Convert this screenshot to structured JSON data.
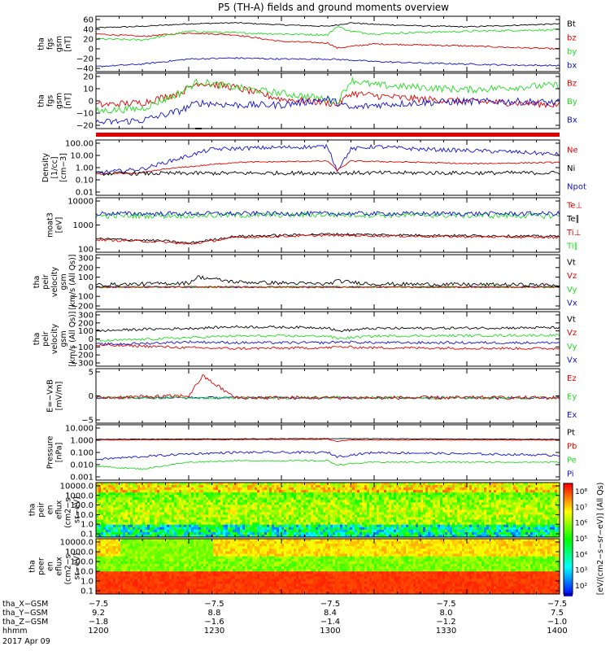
{
  "title": "P5 (TH-A) fields and ground moments overview",
  "colors": {
    "black": "#000000",
    "red": "#e00000",
    "green": "#22dd22",
    "blue": "#1010d0"
  },
  "chart_data": [
    {
      "type": "line",
      "ylabel": [
        "tha",
        "fgs",
        "gsm",
        "[nT]"
      ],
      "yticks": [
        "60",
        "40",
        "20",
        "0",
        "−20",
        "−40"
      ],
      "ylim": [
        -45,
        65
      ],
      "legend": [
        {
          "name": "Bt",
          "color": "black"
        },
        {
          "name": "bz",
          "color": "red"
        },
        {
          "name": "by",
          "color": "green"
        },
        {
          "name": "bx",
          "color": "blue"
        }
      ],
      "series": [
        {
          "name": "Bt",
          "color": "black",
          "x": [
            0,
            0.1,
            0.2,
            0.3,
            0.4,
            0.5,
            0.55,
            0.6,
            0.7,
            0.8,
            0.9,
            1.0
          ],
          "y": [
            42,
            45,
            50,
            52,
            48,
            45,
            52,
            49,
            46,
            44,
            47,
            50
          ],
          "noise": 1.2
        },
        {
          "name": "bz",
          "color": "red",
          "x": [
            0,
            0.1,
            0.2,
            0.3,
            0.4,
            0.5,
            0.52,
            0.55,
            0.6,
            0.7,
            0.8,
            0.9,
            1.0
          ],
          "y": [
            30,
            25,
            32,
            28,
            15,
            12,
            2,
            5,
            10,
            8,
            6,
            3,
            0
          ],
          "noise": 1.5
        },
        {
          "name": "by",
          "color": "green",
          "x": [
            0,
            0.1,
            0.2,
            0.3,
            0.4,
            0.5,
            0.52,
            0.55,
            0.6,
            0.7,
            0.8,
            0.9,
            1.0
          ],
          "y": [
            20,
            18,
            35,
            32,
            30,
            28,
            45,
            35,
            30,
            33,
            35,
            37,
            38
          ],
          "noise": 2
        },
        {
          "name": "bx",
          "color": "blue",
          "x": [
            0,
            0.1,
            0.2,
            0.3,
            0.4,
            0.5,
            0.55,
            0.6,
            0.7,
            0.8,
            0.9,
            1.0
          ],
          "y": [
            -35,
            -30,
            -20,
            -18,
            -20,
            -20,
            -22,
            -25,
            -28,
            -30,
            -32,
            -33
          ],
          "noise": 1.5
        }
      ]
    },
    {
      "type": "line",
      "ylabel": [
        "tha",
        "fgs",
        "gsm",
        "[nT]"
      ],
      "yticks": [
        "20",
        "10",
        "0",
        "−10",
        "−20"
      ],
      "ylim": [
        -25,
        22
      ],
      "legend": [
        {
          "name": "Bz",
          "color": "red"
        },
        {
          "name": "By",
          "color": "green"
        },
        {
          "name": "Bx",
          "color": "blue"
        }
      ],
      "series": [
        {
          "name": "Bz",
          "color": "red",
          "x": [
            0,
            0.1,
            0.18,
            0.22,
            0.3,
            0.4,
            0.5,
            0.52,
            0.55,
            0.6,
            0.7,
            0.8,
            0.9,
            1.0
          ],
          "y": [
            -5,
            -3,
            5,
            14,
            10,
            0,
            -3,
            -5,
            5,
            3,
            0,
            -2,
            -3,
            -5
          ],
          "noise": 3
        },
        {
          "name": "By",
          "color": "green",
          "x": [
            0,
            0.1,
            0.18,
            0.22,
            0.3,
            0.4,
            0.5,
            0.52,
            0.55,
            0.6,
            0.7,
            0.8,
            0.9,
            1.0
          ],
          "y": [
            -10,
            -8,
            5,
            15,
            10,
            5,
            0,
            -3,
            16,
            12,
            10,
            8,
            10,
            12
          ],
          "noise": 3
        },
        {
          "name": "Bx",
          "color": "blue",
          "x": [
            0,
            0.1,
            0.18,
            0.22,
            0.3,
            0.4,
            0.5,
            0.52,
            0.55,
            0.6,
            0.7,
            0.8,
            0.9,
            1.0
          ],
          "y": [
            -20,
            -18,
            -10,
            -3,
            -5,
            -5,
            0,
            -3,
            -8,
            -5,
            -3,
            -2,
            -2,
            -3
          ],
          "noise": 3
        }
      ]
    },
    {
      "type": "line",
      "log": true,
      "ylabel": [
        "Density",
        "[1/cc]",
        "[cm−3]"
      ],
      "yticks": [
        "100.00",
        "10.00",
        "1.00",
        "0.10",
        "0.01"
      ],
      "ylim": [
        -2,
        2.2
      ],
      "legend": [
        {
          "name": "Ne",
          "color": "red"
        },
        {
          "name": "Ni",
          "color": "black"
        },
        {
          "name": "Npot",
          "color": "blue"
        }
      ],
      "series": [
        {
          "name": "Npot",
          "color": "blue",
          "x": [
            0,
            0.1,
            0.15,
            0.25,
            0.35,
            0.5,
            0.52,
            0.55,
            0.6,
            0.7,
            0.8,
            0.9,
            1.0
          ],
          "y": [
            -0.3,
            0,
            0.5,
            1.5,
            1.6,
            1.7,
            -0.1,
            1.5,
            1.7,
            1.5,
            1.4,
            1.3,
            1.1
          ],
          "noise": 0.15
        },
        {
          "name": "Ne",
          "color": "red",
          "x": [
            0,
            0.1,
            0.15,
            0.3,
            0.5,
            0.52,
            0.55,
            0.7,
            0.8,
            0.9,
            1.0
          ],
          "y": [
            -0.4,
            -0.3,
            0,
            0.5,
            0.6,
            -0.1,
            0.6,
            0.5,
            0.4,
            0.45,
            0.5
          ],
          "noise": 0.05
        },
        {
          "name": "Ni",
          "color": "black",
          "x": [
            0,
            0.5,
            1.0
          ],
          "y": [
            -0.35,
            -0.3,
            -0.3
          ],
          "noise": 0.15
        }
      ]
    },
    {
      "type": "line",
      "log": true,
      "ylabel": [
        "moat3",
        "[eV]"
      ],
      "yticks": [
        "10000",
        "1000",
        "100"
      ],
      "ylim": [
        1.6,
        4.0
      ],
      "legend": [
        {
          "name": "Te⊥",
          "color": "red"
        },
        {
          "name": "Te∥",
          "color": "black"
        },
        {
          "name": "Ti⊥",
          "color": "red"
        },
        {
          "name": "Ti∥",
          "color": "green"
        }
      ],
      "series": [
        {
          "name": "Ti∥",
          "color": "green",
          "x": [
            0,
            0.5,
            1.0
          ],
          "y": [
            3.2,
            3.25,
            3.2
          ],
          "noise": 0.12
        },
        {
          "name": "Te∥",
          "color": "blue",
          "x": [
            0,
            0.5,
            1.0
          ],
          "y": [
            3.3,
            3.3,
            3.3
          ],
          "noise": 0.1
        },
        {
          "name": "Te∥b",
          "color": "black",
          "x": [
            0,
            0.15,
            0.2,
            0.3,
            0.5,
            0.7,
            1.0
          ],
          "y": [
            2.2,
            2.1,
            2.0,
            2.3,
            2.4,
            2.35,
            2.3
          ],
          "noise": 0.05
        },
        {
          "name": "Te⊥",
          "color": "red",
          "x": [
            0,
            0.15,
            0.2,
            0.3,
            0.5,
            0.7,
            1.0
          ],
          "y": [
            2.15,
            2.05,
            1.95,
            2.25,
            2.35,
            2.3,
            2.25
          ],
          "noise": 0.05
        }
      ]
    },
    {
      "type": "line",
      "ylabel": [
        "tha",
        "peir",
        "velocity",
        "gsm",
        "[km/s (All Qs)]"
      ],
      "yticks": [
        "300",
        "200",
        "100",
        "0",
        "−100",
        "−200"
      ],
      "ylim": [
        -220,
        320
      ],
      "legend": [
        {
          "name": "Vt",
          "color": "black"
        },
        {
          "name": "Vz",
          "color": "red"
        },
        {
          "name": "Vy",
          "color": "green"
        },
        {
          "name": "Vx",
          "color": "blue"
        }
      ],
      "series": [
        {
          "name": "Vx",
          "color": "blue",
          "x": [
            0,
            1.0
          ],
          "y": [
            0,
            0
          ],
          "noise": 8
        },
        {
          "name": "Vy",
          "color": "green",
          "x": [
            0,
            1.0
          ],
          "y": [
            0,
            0
          ],
          "noise": 10
        },
        {
          "name": "Vz",
          "color": "red",
          "x": [
            0,
            1.0
          ],
          "y": [
            0,
            0
          ],
          "noise": 8
        },
        {
          "name": "Vt",
          "color": "black",
          "x": [
            0,
            0.2,
            0.22,
            0.3,
            0.5,
            0.52,
            0.6,
            1.0
          ],
          "y": [
            20,
            40,
            100,
            50,
            30,
            60,
            30,
            20
          ],
          "noise": 18
        }
      ]
    },
    {
      "type": "line",
      "ylabel": [
        "tha",
        "peir",
        "velocity",
        "gsm",
        "[km/s (All Qs)]"
      ],
      "yticks": [
        "300",
        "200",
        "100",
        "0",
        "−100",
        "−200",
        "−300"
      ],
      "ylim": [
        -320,
        330
      ],
      "legend": [
        {
          "name": "Vt",
          "color": "black"
        },
        {
          "name": "Vz",
          "color": "red"
        },
        {
          "name": "Vy",
          "color": "green"
        },
        {
          "name": "Vx",
          "color": "blue"
        }
      ],
      "series": [
        {
          "name": "Vt",
          "color": "black",
          "x": [
            0,
            0.1,
            0.2,
            0.3,
            0.5,
            0.52,
            0.6,
            1.0
          ],
          "y": [
            100,
            120,
            130,
            150,
            140,
            100,
            130,
            140
          ],
          "noise": 15
        },
        {
          "name": "Vy",
          "color": "green",
          "x": [
            0,
            0.1,
            0.2,
            0.3,
            0.5,
            0.52,
            0.6,
            1.0
          ],
          "y": [
            -20,
            0,
            20,
            40,
            40,
            10,
            40,
            50
          ],
          "noise": 15
        },
        {
          "name": "Vx",
          "color": "blue",
          "x": [
            0,
            0.1,
            0.2,
            0.3,
            0.5,
            0.52,
            0.6,
            1.0
          ],
          "y": [
            -60,
            -50,
            -30,
            -40,
            -40,
            -30,
            -40,
            -40
          ],
          "noise": 15
        },
        {
          "name": "Vz",
          "color": "red",
          "x": [
            0,
            0.1,
            0.2,
            0.3,
            0.5,
            0.52,
            0.6,
            1.0
          ],
          "y": [
            -70,
            -80,
            -100,
            -110,
            -100,
            -90,
            -100,
            -110
          ],
          "noise": 15
        }
      ]
    },
    {
      "type": "line",
      "ylabel": [
        "E=−VxB",
        "[mV/m]"
      ],
      "yticks": [
        "5",
        "0",
        "−5"
      ],
      "ylim": [
        -7,
        8
      ],
      "legend": [
        {
          "name": "Ez",
          "color": "red"
        },
        {
          "name": "Ey",
          "color": "green"
        },
        {
          "name": "Ex",
          "color": "blue"
        }
      ],
      "series": [
        {
          "name": "Ex",
          "color": "blue",
          "x": [
            0,
            1.0
          ],
          "y": [
            0,
            0
          ],
          "noise": 0.3
        },
        {
          "name": "Ey",
          "color": "green",
          "x": [
            0,
            1.0
          ],
          "y": [
            0,
            0
          ],
          "noise": 0.4
        },
        {
          "name": "Ez",
          "color": "red",
          "x": [
            0,
            0.2,
            0.23,
            0.3,
            1.0
          ],
          "y": [
            0,
            0.5,
            6,
            0,
            0
          ],
          "noise": 0.5
        }
      ]
    },
    {
      "type": "line",
      "log": true,
      "ylabel": [
        "Pressure",
        "[nPa]"
      ],
      "yticks": [
        "10.000",
        "1.000",
        "0.100",
        "0.010",
        "0.001"
      ],
      "ylim": [
        -3,
        1
      ],
      "legend": [
        {
          "name": "Pt",
          "color": "black"
        },
        {
          "name": "Pb",
          "color": "red"
        },
        {
          "name": "Pe",
          "color": "green"
        },
        {
          "name": "Pi",
          "color": "blue"
        }
      ],
      "series": [
        {
          "name": "Pt",
          "color": "black",
          "x": [
            0,
            0.5,
            1.0
          ],
          "y": [
            -0.05,
            0,
            -0.05
          ],
          "noise": 0.02
        },
        {
          "name": "Pb",
          "color": "red",
          "x": [
            0,
            0.5,
            0.52,
            0.55,
            1.0
          ],
          "y": [
            -0.1,
            -0.05,
            -0.2,
            -0.1,
            -0.1
          ],
          "noise": 0.02
        },
        {
          "name": "Pi",
          "color": "blue",
          "x": [
            0,
            0.1,
            0.2,
            0.3,
            0.5,
            0.52,
            0.6,
            1.0
          ],
          "y": [
            -1.5,
            -1.3,
            -1.1,
            -1.0,
            -1.0,
            -1.3,
            -1.0,
            -1.2
          ],
          "noise": 0.08
        },
        {
          "name": "Pe",
          "color": "green",
          "x": [
            0,
            0.1,
            0.2,
            0.3,
            0.5,
            0.52,
            0.6,
            1.0
          ],
          "y": [
            -2.0,
            -2.2,
            -1.7,
            -1.6,
            -1.6,
            -1.9,
            -1.7,
            -1.7
          ],
          "noise": 0.05
        }
      ]
    },
    {
      "type": "heatmap",
      "ylabel": [
        "tha",
        "peir",
        "en",
        "eflux",
        "(cm2−s−",
        "sr−eV)"
      ],
      "yticks": [
        "10000.0",
        "1000.0",
        "100.0",
        "10.0",
        "1.0",
        "0.1"
      ]
    },
    {
      "type": "heatmap",
      "ylabel": [
        "tha",
        "peer",
        "en",
        "eflux",
        "(cm2−s−",
        "sr−eV)"
      ],
      "yticks": [
        "10000.0",
        "1000.0",
        "100.0",
        "10.0",
        "1.0",
        "0.1"
      ]
    }
  ],
  "colorbar": {
    "label": "[eV/(cm2−s−sr−eV)] (All Qs)",
    "ticks": [
      "10⁸",
      "10⁷",
      "10⁶",
      "10⁵",
      "10⁴",
      "10³",
      "10²"
    ]
  },
  "xaxis": {
    "rows": [
      {
        "label": "tha_X−GSM",
        "values": [
          "−7.5",
          "−7.5",
          "−7.5",
          "−7.5",
          "−7.5"
        ]
      },
      {
        "label": "tha_Y−GSM",
        "values": [
          "9.2",
          "8.8",
          "8.4",
          "8.0",
          "7.5"
        ]
      },
      {
        "label": "tha_Z−GSM",
        "values": [
          "−1.8",
          "−1.6",
          "−1.4",
          "−1.2",
          "−1.0"
        ]
      },
      {
        "label": "hhmm",
        "values": [
          "1200",
          "1230",
          "1300",
          "1330",
          "1400"
        ]
      }
    ],
    "date": "2017 Apr 09"
  }
}
